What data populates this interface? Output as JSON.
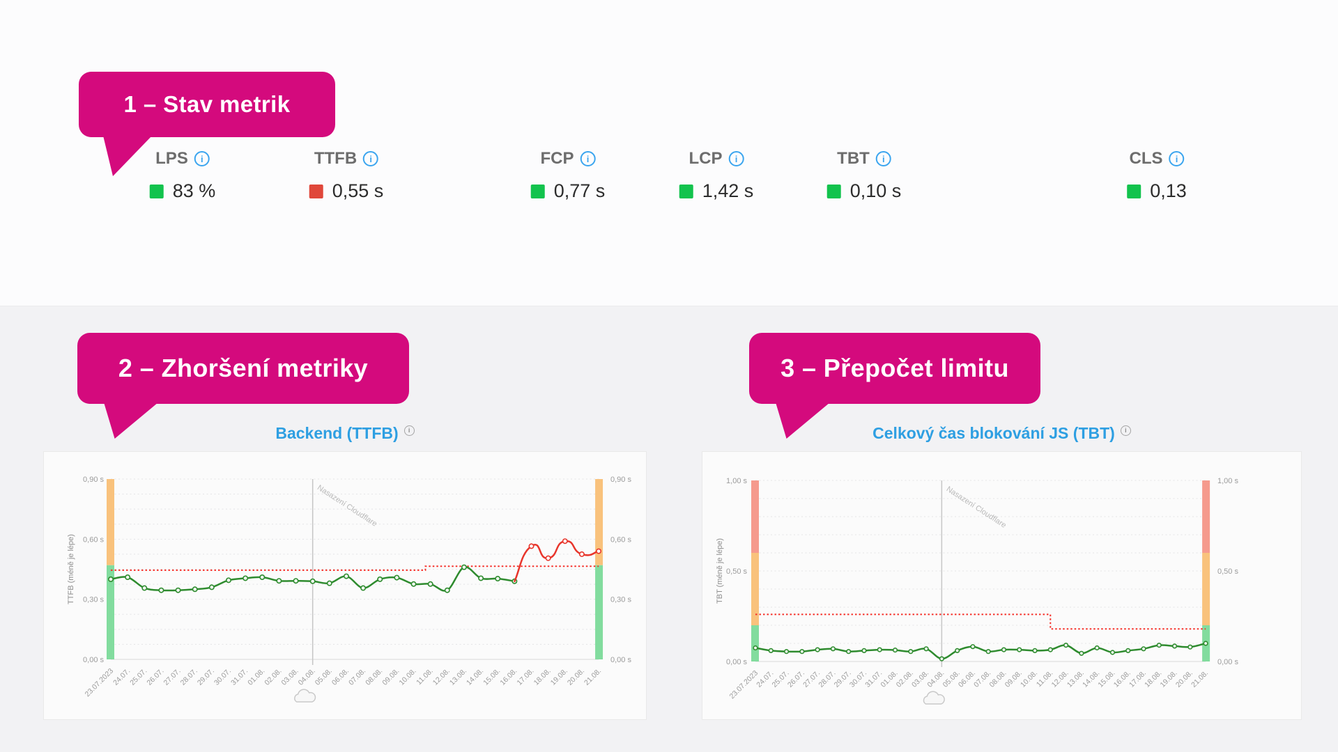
{
  "callouts": {
    "accent": "#d40a7d",
    "items": [
      {
        "label": "1 – Stav metrik"
      },
      {
        "label": "2 – Zhoršení metriky"
      },
      {
        "label": "3 – Přepočet limitu"
      }
    ]
  },
  "metrics": {
    "info_glyph": "i",
    "items": [
      {
        "label": "LPS",
        "value": "83 %",
        "status_color": "#12c34d"
      },
      {
        "label": "TTFB",
        "value": "0,55 s",
        "status_color": "#e0473a"
      },
      {
        "label": "FCP",
        "value": "0,77 s",
        "status_color": "#12c34d"
      },
      {
        "label": "LCP",
        "value": "1,42 s",
        "status_color": "#12c34d"
      },
      {
        "label": "TBT",
        "value": "0,10 s",
        "status_color": "#12c34d"
      },
      {
        "label": "CLS",
        "value": "0,13",
        "status_color": "#12c34d"
      }
    ]
  },
  "chart_data": [
    {
      "type": "line",
      "title": "Backend (TTFB)",
      "title_color": "#2e9fe2",
      "info_icon": "i",
      "ylabel": "TTFB (méně je lépe)",
      "ylim": [
        0,
        0.9
      ],
      "yticks": [
        {
          "value": 0,
          "label": "0,00 s"
        },
        {
          "value": 0.3,
          "label": "0,30 s"
        },
        {
          "value": 0.6,
          "label": "0,60 s"
        },
        {
          "value": 0.9,
          "label": "0,90 s"
        }
      ],
      "categories": [
        "23.07.2023",
        "24.07.",
        "25.07.",
        "26.07.",
        "27.07.",
        "28.07.",
        "29.07.",
        "30.07.",
        "31.07.",
        "01.08.",
        "02.08.",
        "03.08.",
        "04.08.",
        "05.08.",
        "06.08.",
        "07.08.",
        "08.08.",
        "09.08.",
        "10.08.",
        "11.08.",
        "12.08.",
        "13.08.",
        "14.08.",
        "15.08.",
        "16.08.",
        "17.08.",
        "18.08.",
        "19.08.",
        "20.08.",
        "21.08."
      ],
      "series": [
        {
          "role": "normal",
          "color": "#2e8b2e",
          "start_index": 0,
          "values": [
            0.4,
            0.41,
            0.356,
            0.345,
            0.345,
            0.35,
            0.36,
            0.395,
            0.405,
            0.41,
            0.392,
            0.392,
            0.39,
            0.38,
            0.415,
            0.356,
            0.4,
            0.408,
            0.376,
            0.376,
            0.345,
            0.46,
            0.405,
            0.403,
            0.39
          ]
        },
        {
          "role": "degraded",
          "color": "#e8352b",
          "start_index": 24,
          "values": [
            0.39,
            0.565,
            0.505,
            0.59,
            0.525,
            0.54
          ]
        }
      ],
      "limit_line": {
        "color": "#f5312a",
        "segments": [
          {
            "from": 0,
            "to": 18.7,
            "value": 0.445
          },
          {
            "from": 18.7,
            "to": 29,
            "value": 0.465
          }
        ]
      },
      "annotation": {
        "text": "Nasazení Cloudflare",
        "x_index": 12
      },
      "zones": [
        {
          "from": 0.47,
          "to": 0.9,
          "color": "#f9c27c"
        },
        {
          "from": 0,
          "to": 0.47,
          "color": "#82dc9e"
        }
      ]
    },
    {
      "type": "line",
      "title": "Celkový čas blokování JS (TBT)",
      "title_color": "#2e9fe2",
      "info_icon": "i",
      "ylabel": "TBT (méně je lépe)",
      "ylim": [
        0,
        1
      ],
      "yticks": [
        {
          "value": 0,
          "label": "0,00 s"
        },
        {
          "value": 0.5,
          "label": "0,50 s"
        },
        {
          "value": 1,
          "label": "1,00 s"
        }
      ],
      "categories": [
        "23.07.2023",
        "24.07.",
        "25.07.",
        "26.07.",
        "27.07.",
        "28.07.",
        "29.07.",
        "30.07.",
        "31.07.",
        "01.08.",
        "02.08.",
        "03.08.",
        "04.08.",
        "05.08.",
        "06.08.",
        "07.08.",
        "08.08.",
        "09.08.",
        "10.08.",
        "11.08.",
        "12.08.",
        "13.08.",
        "14.08.",
        "15.08.",
        "16.08.",
        "17.08.",
        "18.08.",
        "19.08.",
        "20.08.",
        "21.08."
      ],
      "series": [
        {
          "role": "normal",
          "color": "#2e8b2e",
          "start_index": 0,
          "values": [
            0.075,
            0.06,
            0.055,
            0.055,
            0.065,
            0.07,
            0.055,
            0.06,
            0.065,
            0.063,
            0.055,
            0.07,
            0.015,
            0.06,
            0.082,
            0.055,
            0.065,
            0.065,
            0.06,
            0.065,
            0.09,
            0.045,
            0.075,
            0.05,
            0.06,
            0.07,
            0.09,
            0.085,
            0.08,
            0.1
          ]
        }
      ],
      "limit_line": {
        "color": "#f5312a",
        "segments": [
          {
            "from": 0,
            "to": 19,
            "value": 0.26
          },
          {
            "from": 19,
            "to": 29,
            "value": 0.18
          }
        ]
      },
      "annotation": {
        "text": "Nasazení Cloudflare",
        "x_index": 12
      },
      "zones": [
        {
          "from": 0.6,
          "to": 1,
          "color": "#f59a8d"
        },
        {
          "from": 0.2,
          "to": 0.6,
          "color": "#f9c27c"
        },
        {
          "from": 0,
          "to": 0.2,
          "color": "#82dc9e"
        }
      ]
    }
  ]
}
